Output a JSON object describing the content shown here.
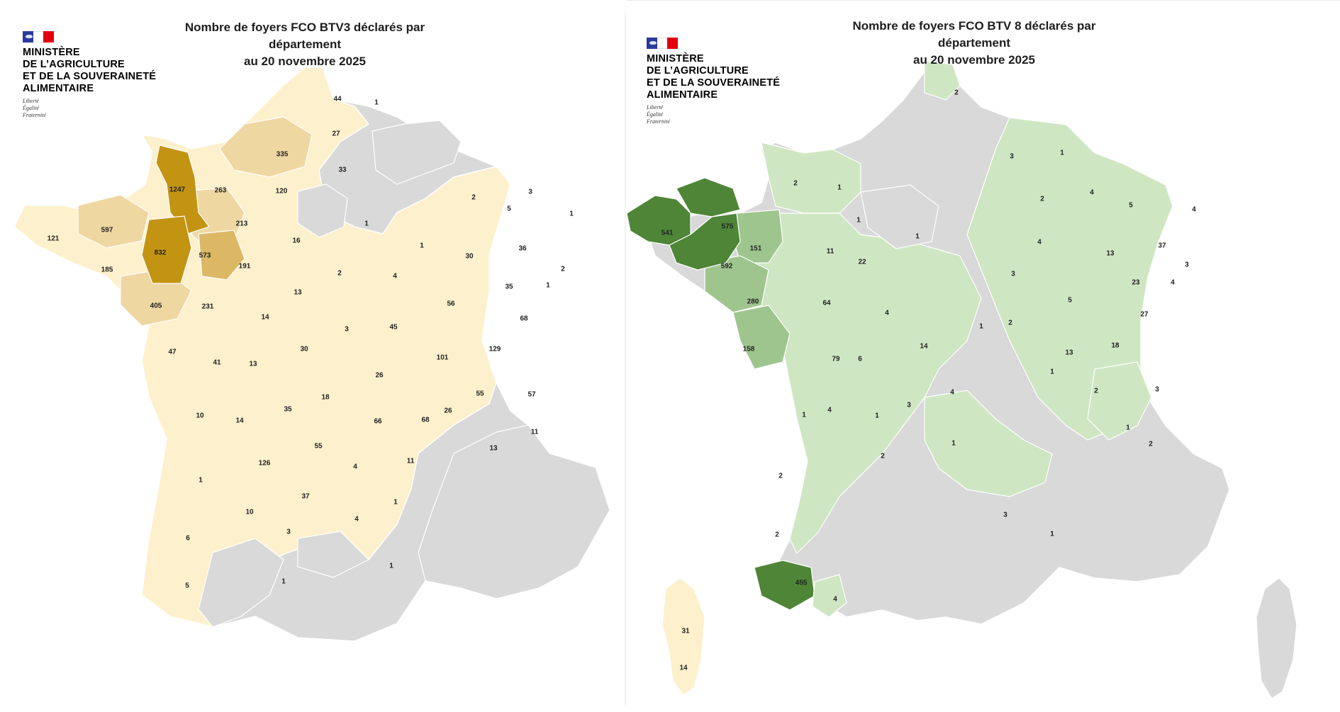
{
  "maps": [
    {
      "id": "btv3",
      "title_line1": "Nombre de foyers FCO BTV3 déclarés par département",
      "title_line2": "au 20 novembre 2025",
      "logo": {
        "lines": [
          "MINISTÈRE",
          "DE L’AGRICULTURE",
          "ET DE LA SOUVERAINETÉ",
          "ALIMENTAIRE"
        ],
        "motto": [
          "Liberté",
          "Égalité",
          "Fraternité"
        ]
      },
      "colors": {
        "none": "#d9d9d9",
        "low": "#fdf0cc",
        "mid": "#efd7a2",
        "high": "#dcb865",
        "top": "#c39412"
      },
      "departments": [
        {
          "value": "44"
        },
        {
          "value": "1"
        },
        {
          "value": "27"
        },
        {
          "value": "335"
        },
        {
          "value": "33"
        },
        {
          "value": "1247"
        },
        {
          "value": "263"
        },
        {
          "value": "120"
        },
        {
          "value": "2"
        },
        {
          "value": "3"
        },
        {
          "value": "5"
        },
        {
          "value": "1"
        },
        {
          "value": "121"
        },
        {
          "value": "597"
        },
        {
          "value": "213"
        },
        {
          "value": "16"
        },
        {
          "value": "1"
        },
        {
          "value": "832"
        },
        {
          "value": "573"
        },
        {
          "value": "1"
        },
        {
          "value": "30"
        },
        {
          "value": "36"
        },
        {
          "value": "185"
        },
        {
          "value": "191"
        },
        {
          "value": "2"
        },
        {
          "value": "4"
        },
        {
          "value": "2"
        },
        {
          "value": "13"
        },
        {
          "value": "35"
        },
        {
          "value": "1"
        },
        {
          "value": "405"
        },
        {
          "value": "231"
        },
        {
          "value": "56"
        },
        {
          "value": "14"
        },
        {
          "value": "3"
        },
        {
          "value": "45"
        },
        {
          "value": "68"
        },
        {
          "value": "47"
        },
        {
          "value": "30"
        },
        {
          "value": "101"
        },
        {
          "value": "129"
        },
        {
          "value": "41"
        },
        {
          "value": "13"
        },
        {
          "value": "26"
        },
        {
          "value": "18"
        },
        {
          "value": "55"
        },
        {
          "value": "57"
        },
        {
          "value": "10"
        },
        {
          "value": "14"
        },
        {
          "value": "35"
        },
        {
          "value": "66"
        },
        {
          "value": "68"
        },
        {
          "value": "26"
        },
        {
          "value": "55"
        },
        {
          "value": "11"
        },
        {
          "value": "13"
        },
        {
          "value": "126"
        },
        {
          "value": "4"
        },
        {
          "value": "11"
        },
        {
          "value": "1"
        },
        {
          "value": "37"
        },
        {
          "value": "10"
        },
        {
          "value": "1"
        },
        {
          "value": "4"
        },
        {
          "value": "6"
        },
        {
          "value": "3"
        },
        {
          "value": "1"
        },
        {
          "value": "5"
        },
        {
          "value": "1"
        }
      ],
      "corsica": [
        {
          "value": "31"
        },
        {
          "value": "14"
        }
      ]
    },
    {
      "id": "btv8",
      "title_line1": "Nombre de foyers FCO BTV 8 déclarés par département",
      "title_line2": "au 20 novembre 2025",
      "logo": {
        "lines": [
          "MINISTÈRE",
          "DE L’AGRICULTURE",
          "ET DE LA SOUVERAINETÉ",
          "ALIMENTAIRE"
        ],
        "motto": [
          "Liberté",
          "Égalité",
          "Fraternité"
        ]
      },
      "colors": {
        "none": "#d9d9d9",
        "low": "#cfe6c3",
        "mid": "#9fc58e",
        "high": "#7aa968",
        "top": "#4e8537"
      },
      "departments": [
        {
          "value": "2"
        },
        {
          "value": "3"
        },
        {
          "value": "1"
        },
        {
          "value": "2"
        },
        {
          "value": "1"
        },
        {
          "value": "2"
        },
        {
          "value": "4"
        },
        {
          "value": "5"
        },
        {
          "value": "4"
        },
        {
          "value": "1"
        },
        {
          "value": "541"
        },
        {
          "value": "575"
        },
        {
          "value": "1"
        },
        {
          "value": "4"
        },
        {
          "value": "13"
        },
        {
          "value": "37"
        },
        {
          "value": "3"
        },
        {
          "value": "151"
        },
        {
          "value": "11"
        },
        {
          "value": "22"
        },
        {
          "value": "592"
        },
        {
          "value": "3"
        },
        {
          "value": "23"
        },
        {
          "value": "4"
        },
        {
          "value": "280"
        },
        {
          "value": "64"
        },
        {
          "value": "4"
        },
        {
          "value": "5"
        },
        {
          "value": "1"
        },
        {
          "value": "2"
        },
        {
          "value": "27"
        },
        {
          "value": "158"
        },
        {
          "value": "79"
        },
        {
          "value": "6"
        },
        {
          "value": "14"
        },
        {
          "value": "13"
        },
        {
          "value": "18"
        },
        {
          "value": "1"
        },
        {
          "value": "2"
        },
        {
          "value": "3"
        },
        {
          "value": "4"
        },
        {
          "value": "4"
        },
        {
          "value": "1"
        },
        {
          "value": "3"
        },
        {
          "value": "1"
        },
        {
          "value": "1"
        },
        {
          "value": "2"
        },
        {
          "value": "2"
        },
        {
          "value": "1"
        },
        {
          "value": "2"
        },
        {
          "value": "3"
        },
        {
          "value": "1"
        },
        {
          "value": "2"
        },
        {
          "value": "455"
        },
        {
          "value": "4"
        }
      ]
    }
  ]
}
